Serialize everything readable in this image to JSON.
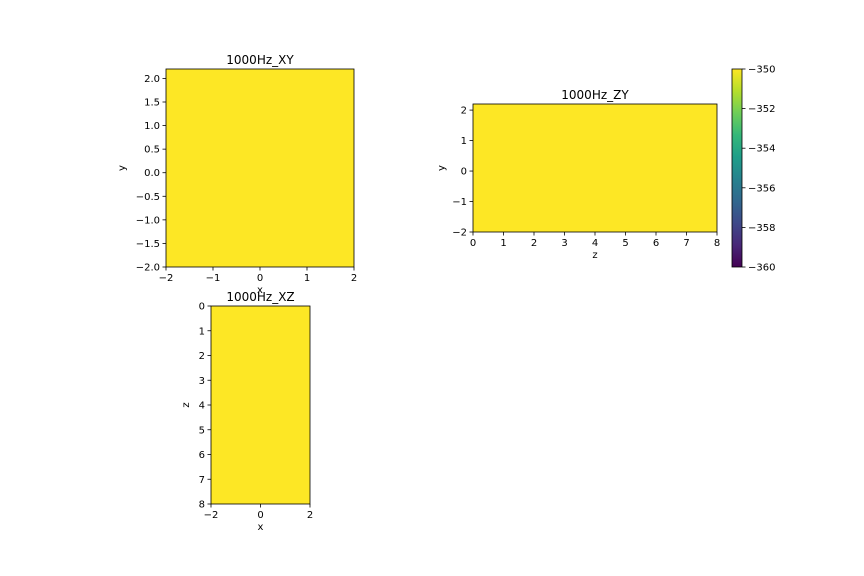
{
  "chart_data": [
    {
      "type": "heatmap",
      "title": "1000Hz_XY",
      "xlabel": "x",
      "ylabel": "y",
      "xlim": [
        -2,
        2.0
      ],
      "ylim": [
        -2.0,
        2.2
      ],
      "xticks": [
        "−2",
        "−1",
        "0",
        "1",
        "2"
      ],
      "xtick_values": [
        -2,
        -1,
        0,
        1,
        2
      ],
      "yticks": [
        "−2.0",
        "−1.5",
        "−1.0",
        "−0.5",
        "0.0",
        "0.5",
        "1.0",
        "1.5",
        "2.0"
      ],
      "ytick_values": [
        -2.0,
        -1.5,
        -1.0,
        -0.5,
        0.0,
        0.5,
        1.0,
        1.5,
        2.0
      ],
      "y_inverted": false,
      "value": -350,
      "fill_color": "#fde725"
    },
    {
      "type": "heatmap",
      "title": "1000Hz_ZY",
      "xlabel": "z",
      "ylabel": "y",
      "xlim": [
        0,
        8
      ],
      "ylim": [
        -2,
        2.2
      ],
      "xticks": [
        "0",
        "1",
        "2",
        "3",
        "4",
        "5",
        "6",
        "7",
        "8"
      ],
      "xtick_values": [
        0,
        1,
        2,
        3,
        4,
        5,
        6,
        7,
        8
      ],
      "yticks": [
        "−2",
        "−1",
        "0",
        "1",
        "2"
      ],
      "ytick_values": [
        -2,
        -1,
        0,
        1,
        2
      ],
      "y_inverted": false,
      "value": -350,
      "fill_color": "#fde725"
    },
    {
      "type": "heatmap",
      "title": "1000Hz_XZ",
      "xlabel": "x",
      "ylabel": "z",
      "xlim": [
        -2,
        2
      ],
      "ylim": [
        0,
        8
      ],
      "xticks": [
        "−2",
        "0",
        "2"
      ],
      "xtick_values": [
        -2,
        0,
        2
      ],
      "yticks": [
        "0",
        "1",
        "2",
        "3",
        "4",
        "5",
        "6",
        "7",
        "8"
      ],
      "ytick_values": [
        0,
        1,
        2,
        3,
        4,
        5,
        6,
        7,
        8
      ],
      "y_inverted": true,
      "value": -350,
      "fill_color": "#fde725"
    }
  ],
  "colorbar": {
    "colormap": "viridis",
    "range": [
      -360,
      -350
    ],
    "ticks": [
      "−350",
      "−352",
      "−354",
      "−356",
      "−358",
      "−360"
    ],
    "tick_values": [
      -350,
      -352,
      -354,
      -356,
      -358,
      -360
    ],
    "stops": [
      "#440154",
      "#482878",
      "#3e4989",
      "#31688e",
      "#26828e",
      "#1f9e89",
      "#35b779",
      "#6ece58",
      "#b5de2b",
      "#fde725"
    ]
  }
}
